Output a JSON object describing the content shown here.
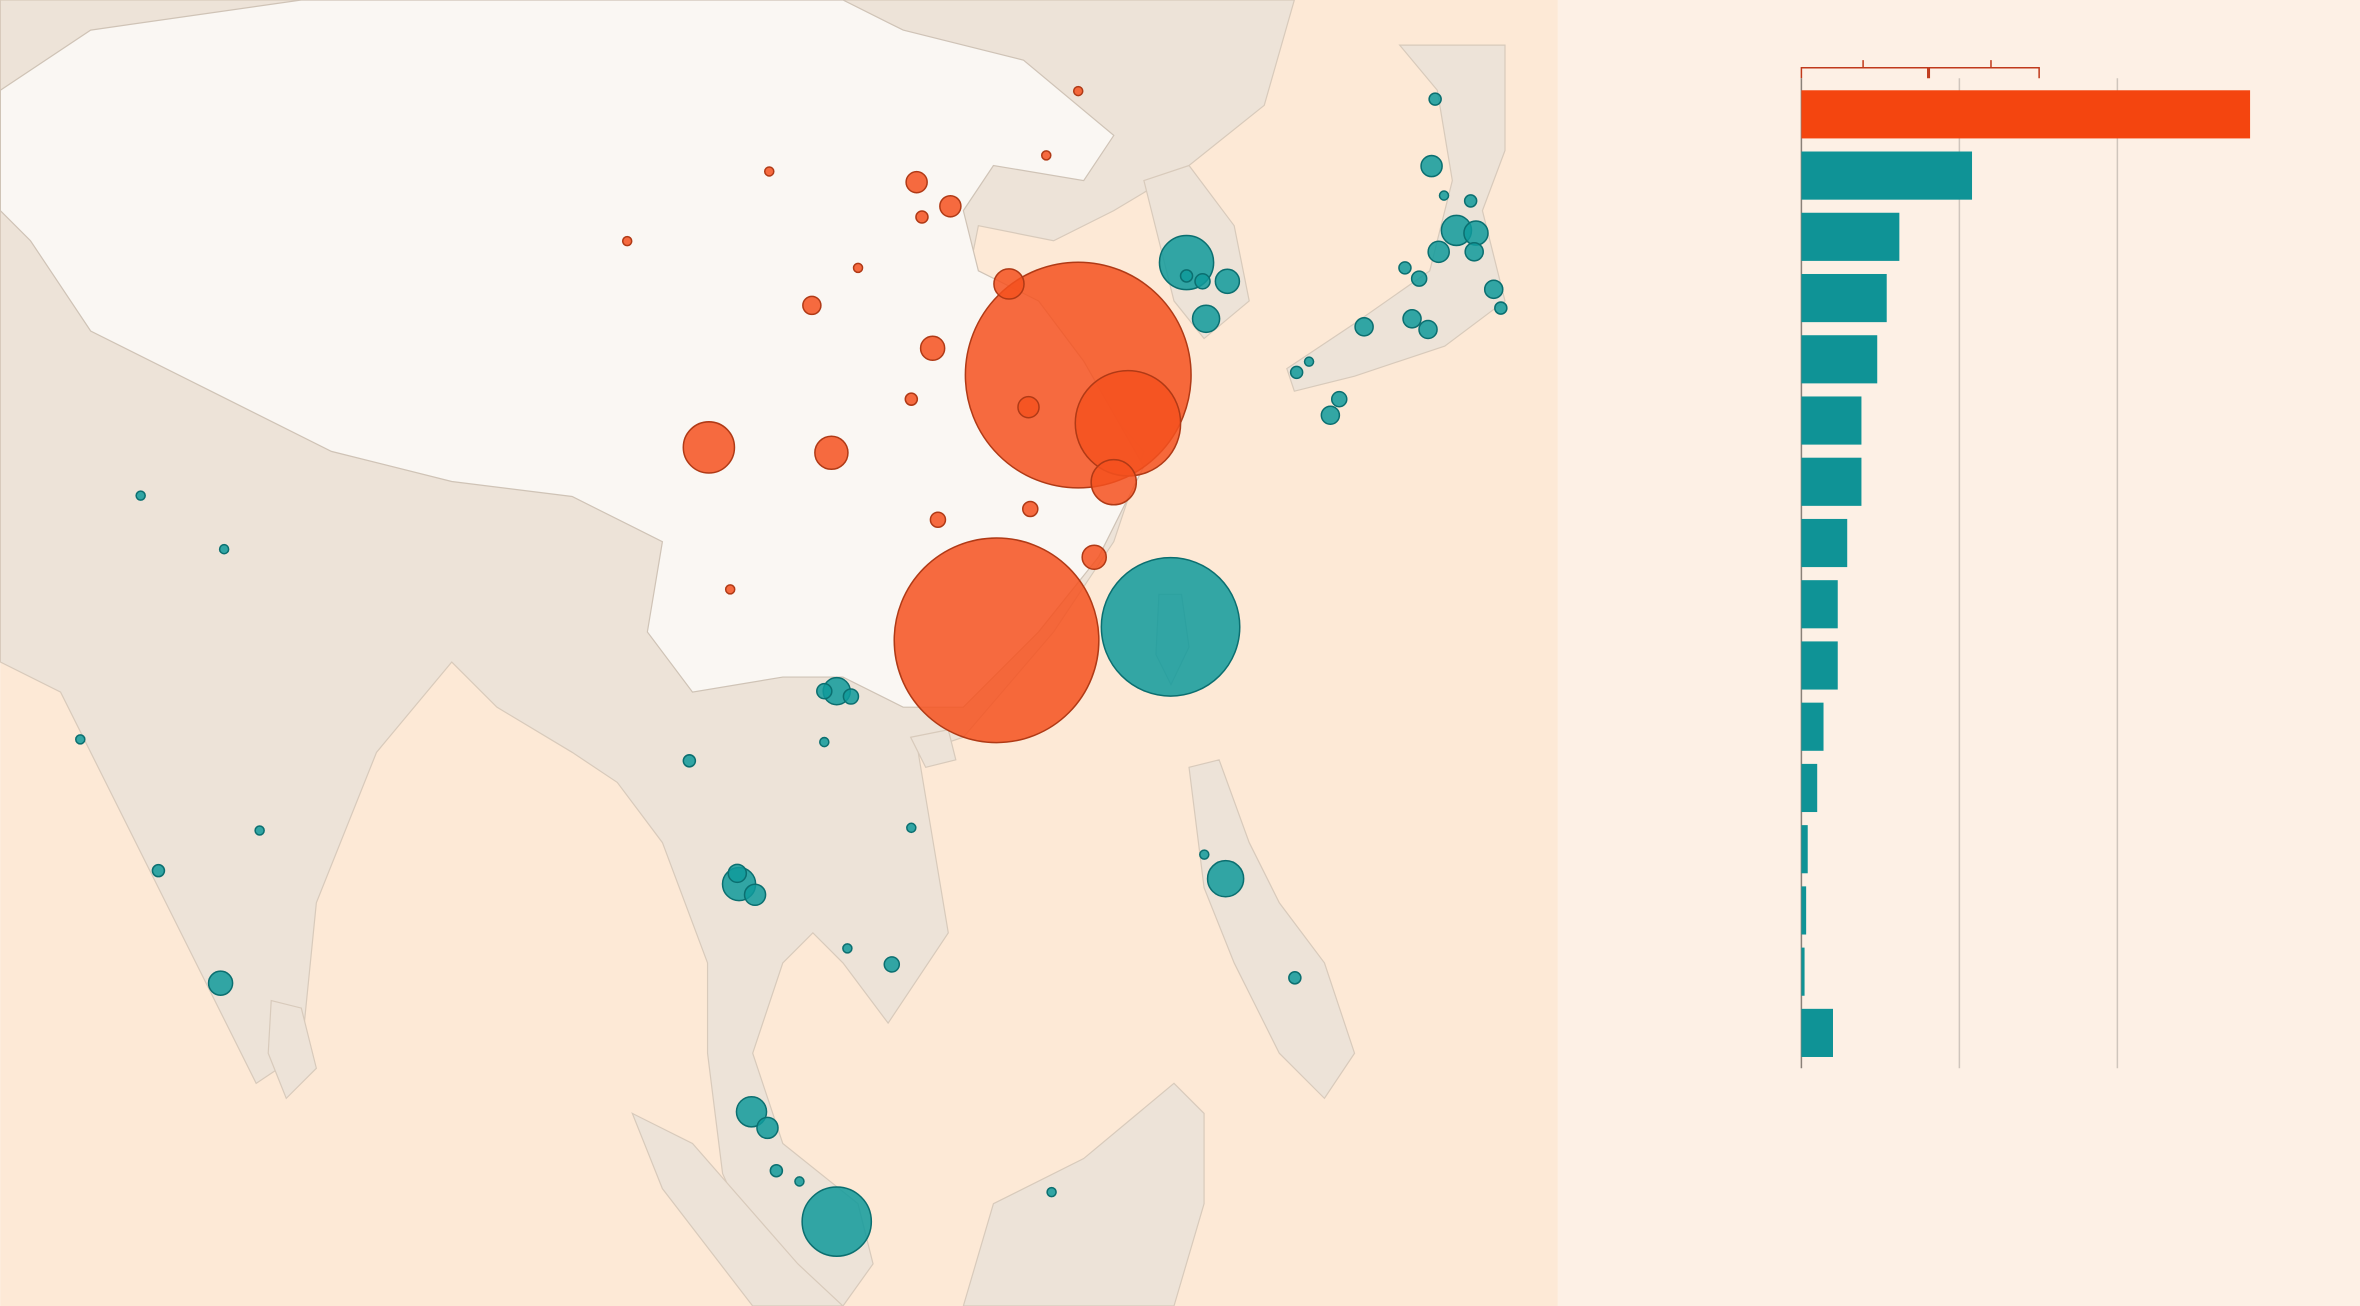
{
  "chart_data": [
    {
      "type": "bubble-map",
      "xlim": [
        56.7,
        144.4
      ],
      "ylim": [
        -1.85,
        46.9
      ],
      "series": [
        {
          "color": "#f4511e",
          "x": [
            117.4,
            112.8,
            120.2,
            96.6,
            103.5,
            119.4,
            113.5,
            109.2,
            114.6,
            118.3,
            108.3,
            110.2,
            102.4,
            109.5,
            114.7,
            108.0,
            105.0,
            100.0,
            92.0,
            97.8,
            117.4,
            115.6,
            108.6
          ],
          "y": [
            32.9,
            23.0,
            31.1,
            30.2,
            30.0,
            28.9,
            36.3,
            33.9,
            31.7,
            26.1,
            40.1,
            39.2,
            35.5,
            27.5,
            27.9,
            32.0,
            36.9,
            40.5,
            37.9,
            24.9,
            43.5,
            41.1,
            38.8
          ],
          "values": [
            5625,
            4624,
            1225,
            289,
            121,
            225,
            100,
            64,
            49,
            64,
            49,
            49,
            36,
            25,
            25,
            16,
            9,
            9,
            9,
            9,
            9,
            9,
            16
          ]
        },
        {
          "color": "#0f9a9b",
          "x": [
            122.6,
            103.8,
            123.5,
            125.8,
            124.6,
            124.4,
            123.5,
            138.7,
            139.8,
            139.7,
            137.7,
            137.3,
            137.5,
            140.8,
            139.5,
            136.2,
            137.1,
            133.5,
            131.6,
            132.1,
            136.6,
            135.8,
            129.7,
            141.2,
            130.4,
            138.0,
            103.8,
            104.6,
            103.1,
            98.3,
            99.2,
            98.2,
            125.7,
            124.5,
            99.0,
            99.9,
            100.4,
            101.7,
            69.1,
            65.6,
            61.2,
            64.6,
            69.3,
            71.3,
            106.9,
            95.5,
            129.6,
            104.4,
            108.0,
            115.9,
            103.1
          ],
          "y": [
            23.5,
            1.3,
            37.1,
            36.4,
            35.0,
            36.4,
            36.6,
            38.3,
            38.2,
            37.5,
            37.5,
            40.7,
            43.2,
            36.1,
            39.4,
            35.0,
            34.6,
            34.7,
            31.4,
            32.0,
            36.5,
            36.9,
            33.0,
            35.4,
            33.4,
            39.6,
            21.1,
            20.9,
            21.1,
            13.9,
            13.5,
            14.3,
            14.1,
            15.0,
            5.4,
            4.8,
            3.2,
            2.8,
            10.2,
            14.4,
            19.3,
            28.4,
            26.4,
            15.9,
            10.9,
            18.5,
            10.4,
            11.5,
            16.0,
            2.4,
            19.2
          ],
          "values": [
            2116,
            529,
            324,
            64,
            81,
            25,
            16,
            100,
            64,
            36,
            49,
            49,
            16,
            36,
            16,
            36,
            36,
            36,
            36,
            25,
            25,
            16,
            16,
            16,
            9,
            9,
            81,
            25,
            25,
            121,
            49,
            36,
            144,
            9,
            100,
            49,
            16,
            9,
            64,
            16,
            9,
            9,
            9,
            9,
            25,
            16,
            16,
            9,
            9,
            9,
            9
          ]
        }
      ]
    },
    {
      "type": "bar-horizontal",
      "xlim": [
        0,
        3
      ],
      "xticks": [
        0,
        1,
        2
      ],
      "grid": true,
      "categories": [
        null,
        null,
        null,
        null,
        null,
        null,
        null,
        null,
        null,
        null,
        null,
        null,
        null,
        null,
        null,
        null
      ],
      "values": [
        2.84,
        1.08,
        0.62,
        0.54,
        0.48,
        0.38,
        0.38,
        0.29,
        0.23,
        0.23,
        0.14,
        0.1,
        0.04,
        0.03,
        0.02,
        0.2
      ],
      "colors": [
        "#f4450f",
        "#0f9396",
        "#0f9396",
        "#0f9396",
        "#0f9396",
        "#0f9396",
        "#0f9396",
        "#0f9396",
        "#0f9396",
        "#0f9396",
        "#0f9396",
        "#0f9396",
        "#0f9396",
        "#0f9396",
        "#0f9396",
        "#0f9396"
      ]
    }
  ]
}
